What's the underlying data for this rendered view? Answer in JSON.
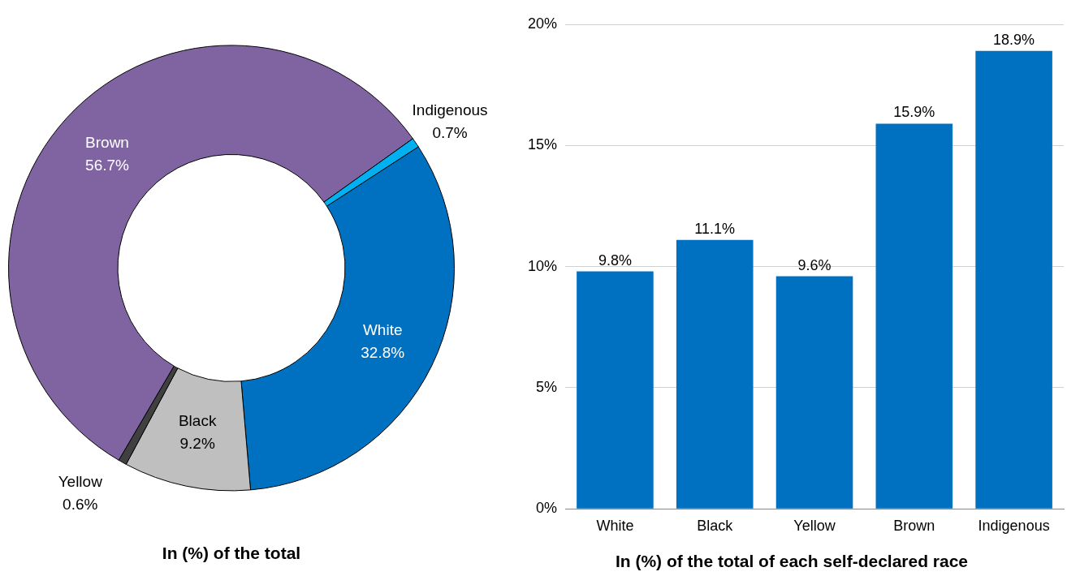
{
  "chart_data": [
    {
      "type": "donut",
      "title": "In (%) of the total",
      "categories": [
        "White",
        "Black",
        "Yellow",
        "Brown",
        "Indigenous"
      ],
      "values": [
        32.8,
        9.2,
        0.6,
        56.7,
        0.7
      ],
      "colors": [
        "#0070c0",
        "#bfbfbf",
        "#404040",
        "#8064a2",
        "#00b0f0"
      ],
      "value_labels": [
        "32.8%",
        "9.2%",
        "0.6%",
        "56.7%",
        "0.7%"
      ]
    },
    {
      "type": "bar",
      "title": "In (%) of the total of each self-declared race",
      "categories": [
        "White",
        "Black",
        "Yellow",
        "Brown",
        "Indigenous"
      ],
      "values": [
        9.8,
        11.1,
        9.6,
        15.9,
        18.9
      ],
      "color": "#0070c0",
      "ylim": [
        0,
        20
      ],
      "yticks": [
        {
          "value": 0,
          "label": "0%"
        },
        {
          "value": 5,
          "label": "5%"
        },
        {
          "value": 10,
          "label": "10%"
        },
        {
          "value": 15,
          "label": "15%"
        },
        {
          "value": 20,
          "label": "20%"
        }
      ],
      "grid": "y",
      "value_labels": [
        "9.8%",
        "11.1%",
        "9.6%",
        "15.9%",
        "18.9%"
      ]
    }
  ]
}
